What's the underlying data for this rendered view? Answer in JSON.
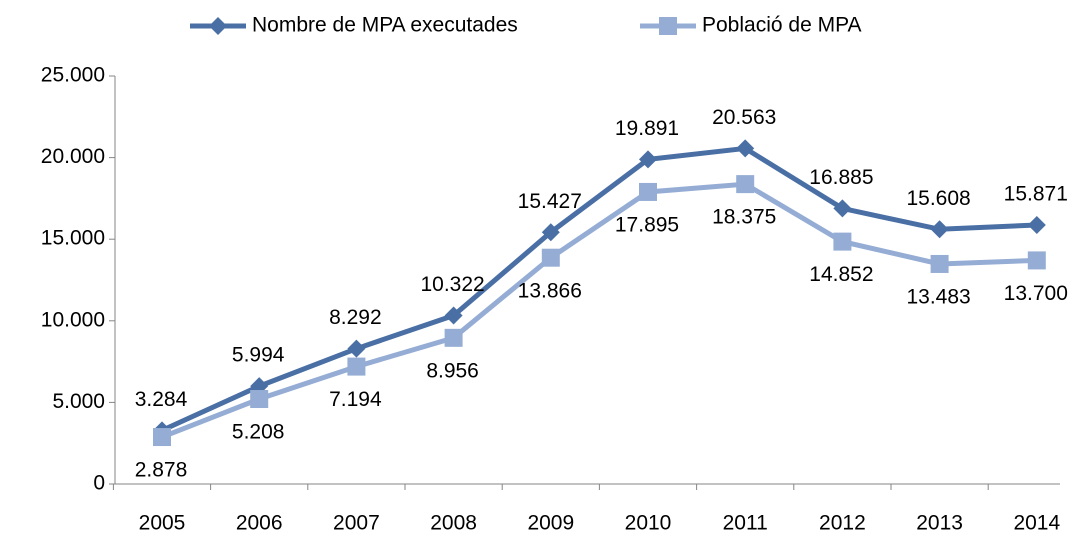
{
  "chart_data": {
    "type": "line",
    "categories": [
      "2005",
      "2006",
      "2007",
      "2008",
      "2009",
      "2010",
      "2011",
      "2012",
      "2013",
      "2014"
    ],
    "series": [
      {
        "name": "Nombre de MPA executades",
        "color": "#4a6fa5",
        "marker": "diamond",
        "values": [
          3284,
          5994,
          8292,
          10322,
          15427,
          19891,
          20563,
          16885,
          15608,
          15871
        ],
        "value_labels": [
          "3.284",
          "5.994",
          "8.292",
          "10.322",
          "15.427",
          "19.891",
          "20.563",
          "16.885",
          "15.608",
          "15.871"
        ]
      },
      {
        "name": "Població de MPA",
        "color": "#95add4",
        "marker": "square",
        "values": [
          2878,
          5208,
          7194,
          8956,
          13866,
          17895,
          18375,
          14852,
          13483,
          13700
        ],
        "value_labels": [
          "2.878",
          "5.208",
          "7.194",
          "8.956",
          "13.866",
          "17.895",
          "18.375",
          "14.852",
          "13.483",
          "13.700"
        ]
      }
    ],
    "ylim": [
      0,
      25000
    ],
    "yticks": [
      0,
      {
        "value": 5000,
        "label": "5.000"
      },
      {
        "value": 10000,
        "label": "10.000"
      },
      {
        "value": 15000,
        "label": "15.000"
      },
      {
        "value": 20000,
        "label": "20.000"
      },
      {
        "value": 25000,
        "label": "25.000"
      }
    ],
    "legend": "top"
  }
}
